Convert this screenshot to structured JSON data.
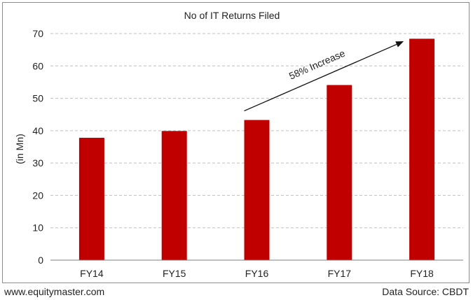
{
  "chart_data": {
    "type": "bar",
    "title": "No of IT Returns Filed",
    "ylabel": "(in Mn)",
    "xlabel": "",
    "categories": [
      "FY14",
      "FY15",
      "FY16",
      "FY17",
      "FY18"
    ],
    "values": [
      37.8,
      39.9,
      43.3,
      54.1,
      68.4
    ],
    "ylim": [
      0,
      70
    ],
    "yticks": [
      0,
      10,
      20,
      30,
      40,
      50,
      60,
      70
    ],
    "grid": true,
    "annotation": {
      "text": "58% Increase",
      "from_category": "FY16",
      "to_category": "FY18"
    },
    "colors": {
      "bar": "#c00000",
      "grid": "#bfbfbf",
      "axis": "#7f7f7f"
    }
  },
  "footer": {
    "website": "www.equitymaster.com",
    "source": "Data Source: CBDT"
  }
}
